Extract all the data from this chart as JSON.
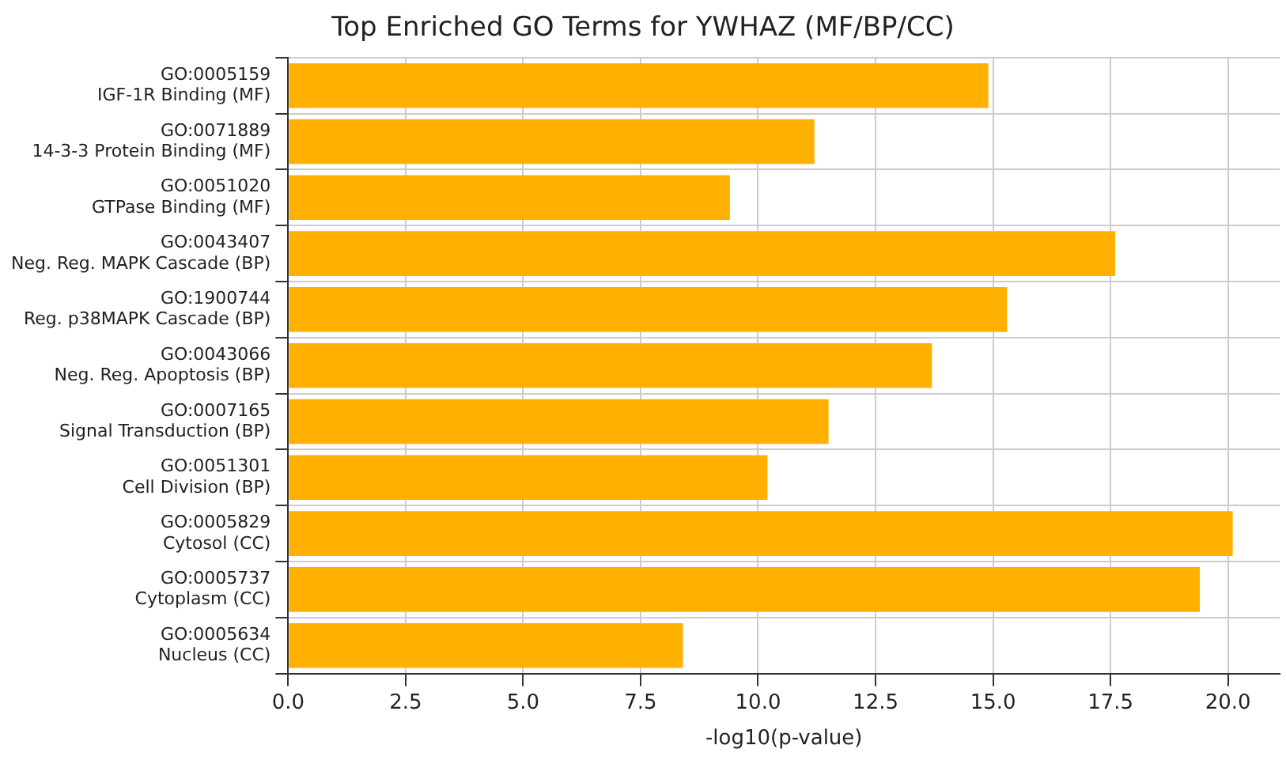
{
  "chart_data": {
    "type": "bar",
    "orientation": "horizontal",
    "title": "Top Enriched GO Terms for YWHAZ (MF/BP/CC)",
    "xlabel": "-log10(p-value)",
    "categories": [
      "GO:0005159\nIGF-1R Binding (MF)",
      "GO:0071889\n14-3-3 Protein Binding (MF)",
      "GO:0051020\nGTPase Binding (MF)",
      "GO:0043407\nNeg. Reg. MAPK Cascade (BP)",
      "GO:1900744\nReg. p38MAPK Cascade (BP)",
      "GO:0043066\nNeg. Reg. Apoptosis (BP)",
      "GO:0007165\nSignal Transduction (BP)",
      "GO:0051301\nCell Division (BP)",
      "GO:0005829\nCytosol (CC)",
      "GO:0005737\nCytoplasm (CC)",
      "GO:0005634\nNucleus (CC)"
    ],
    "values": [
      14.9,
      11.2,
      9.4,
      17.6,
      15.3,
      13.7,
      11.5,
      10.2,
      20.1,
      19.4,
      8.4
    ],
    "color": "#ffb000",
    "xlim": [
      0,
      21.1
    ],
    "xticks": [
      {
        "value": 0,
        "label": "0.0"
      },
      {
        "value": 2.5,
        "label": "2.5"
      },
      {
        "value": 5,
        "label": "5.0"
      },
      {
        "value": 7.5,
        "label": "7.5"
      },
      {
        "value": 10,
        "label": "10.0"
      },
      {
        "value": 12.5,
        "label": "12.5"
      },
      {
        "value": 15,
        "label": "15.0"
      },
      {
        "value": 17.5,
        "label": "17.5"
      },
      {
        "value": 20,
        "label": "20.0"
      }
    ],
    "grid": true,
    "legend": false
  }
}
